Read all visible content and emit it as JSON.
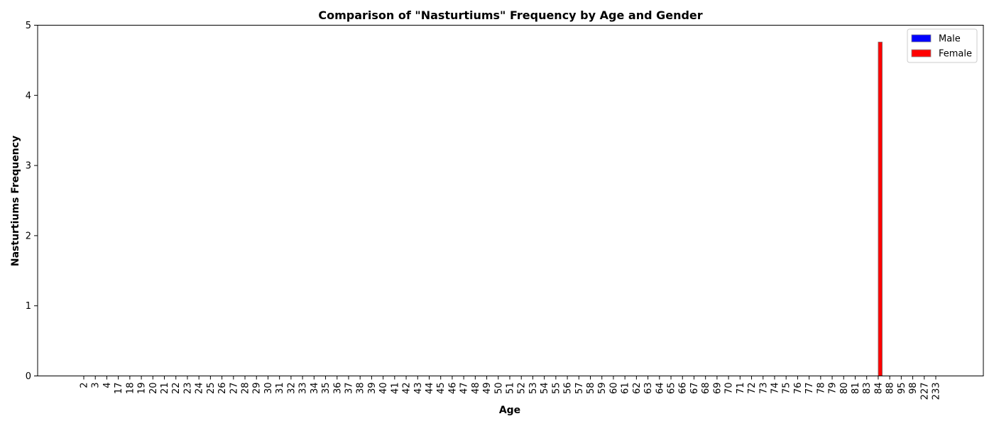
{
  "chart_data": {
    "type": "bar",
    "title": "Comparison of \"Nasturtiums\" Frequency by Age and Gender",
    "xlabel": "Age",
    "ylabel": "Nasturtiums Frequency",
    "ylim": [
      0,
      5
    ],
    "yticks": [
      0,
      1,
      2,
      3,
      4,
      5
    ],
    "categories": [
      "2",
      "3",
      "4",
      "17",
      "18",
      "19",
      "20",
      "21",
      "22",
      "23",
      "24",
      "25",
      "26",
      "27",
      "28",
      "29",
      "30",
      "31",
      "32",
      "33",
      "34",
      "35",
      "36",
      "37",
      "38",
      "39",
      "40",
      "41",
      "42",
      "43",
      "44",
      "45",
      "46",
      "47",
      "48",
      "49",
      "50",
      "51",
      "52",
      "53",
      "54",
      "55",
      "56",
      "57",
      "58",
      "59",
      "60",
      "61",
      "62",
      "63",
      "64",
      "65",
      "66",
      "67",
      "68",
      "69",
      "70",
      "71",
      "72",
      "73",
      "74",
      "75",
      "76",
      "77",
      "78",
      "79",
      "80",
      "81",
      "83",
      "84",
      "88",
      "95",
      "98",
      "227",
      "233"
    ],
    "series": [
      {
        "name": "Male",
        "color": "#0000ff",
        "values": [
          0,
          0,
          0,
          0,
          0,
          0,
          0,
          0,
          0,
          0,
          0,
          0,
          0,
          0,
          0,
          0,
          0,
          0,
          0,
          0,
          0,
          0,
          0,
          0,
          0,
          0,
          0,
          0,
          0,
          0,
          0,
          0,
          0,
          0,
          0,
          0,
          0,
          0,
          0,
          0,
          0,
          0,
          0,
          0,
          0,
          0,
          0,
          0,
          0,
          0,
          0,
          0,
          0,
          0,
          0,
          0,
          0,
          0,
          0,
          0,
          0,
          0,
          0,
          0,
          0,
          0,
          0,
          0,
          0,
          0,
          0,
          0,
          0,
          0,
          0
        ]
      },
      {
        "name": "Female",
        "color": "#ff0000",
        "values": [
          0,
          0,
          0,
          0,
          0,
          0,
          0,
          0,
          0,
          0,
          0,
          0,
          0,
          0,
          0,
          0,
          0,
          0,
          0,
          0,
          0,
          0,
          0,
          0,
          0,
          0,
          0,
          0,
          0,
          0,
          0,
          0,
          0,
          0,
          0,
          0,
          0,
          0,
          0,
          0,
          0,
          0,
          0,
          0,
          0,
          0,
          0,
          0,
          0,
          0,
          0,
          0,
          0,
          0,
          0,
          0,
          0,
          0,
          0,
          0,
          0,
          0,
          0,
          0,
          0,
          0,
          0,
          0,
          0,
          4.76,
          0,
          0,
          0,
          0,
          0
        ]
      }
    ],
    "legend_position": "top-right",
    "grid": false
  }
}
